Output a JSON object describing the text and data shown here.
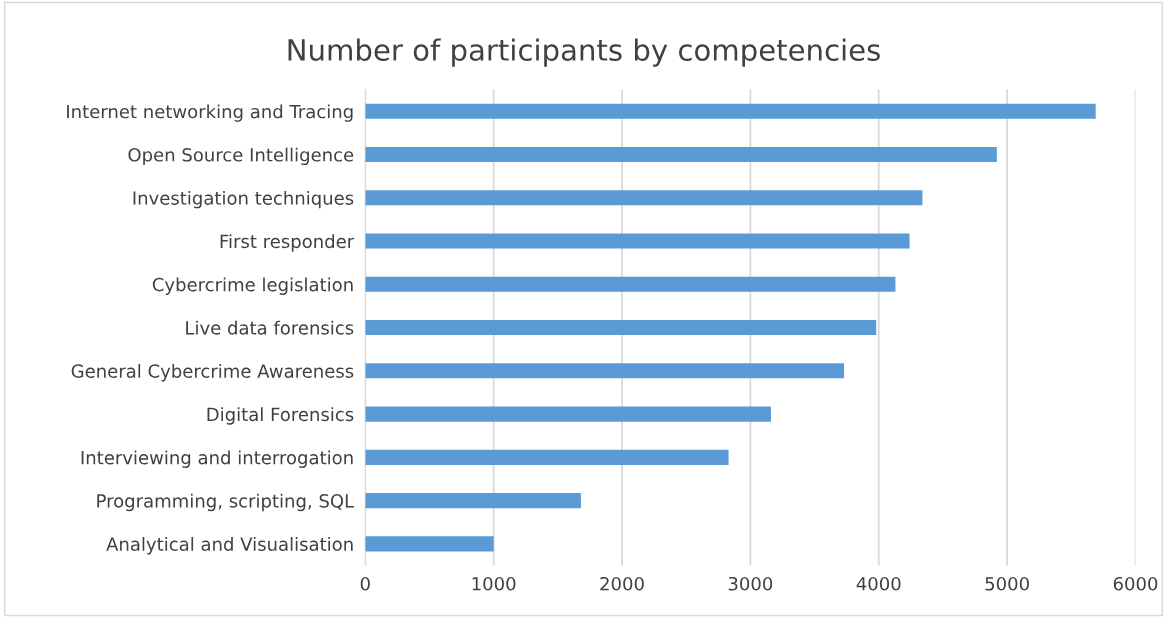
{
  "chart_data": {
    "type": "bar",
    "orientation": "horizontal",
    "title": "Number of participants by competencies",
    "categories": [
      "Internet networking and Tracing",
      "Open Source Intelligence",
      "Investigation techniques",
      "First responder",
      "Cybercrime legislation",
      "Live data forensics",
      "General Cybercrime Awareness",
      "Digital Forensics",
      "Interviewing and interrogation",
      "Programming, scripting, SQL",
      "Analytical and Visualisation"
    ],
    "values": [
      5690,
      4920,
      4340,
      4240,
      4130,
      3980,
      3730,
      3160,
      2830,
      1680,
      1000
    ],
    "color": "#5b9bd5",
    "xlim": [
      0,
      6000
    ],
    "xticks": [
      0,
      1000,
      2000,
      3000,
      4000,
      5000,
      6000
    ],
    "grid": "x"
  }
}
